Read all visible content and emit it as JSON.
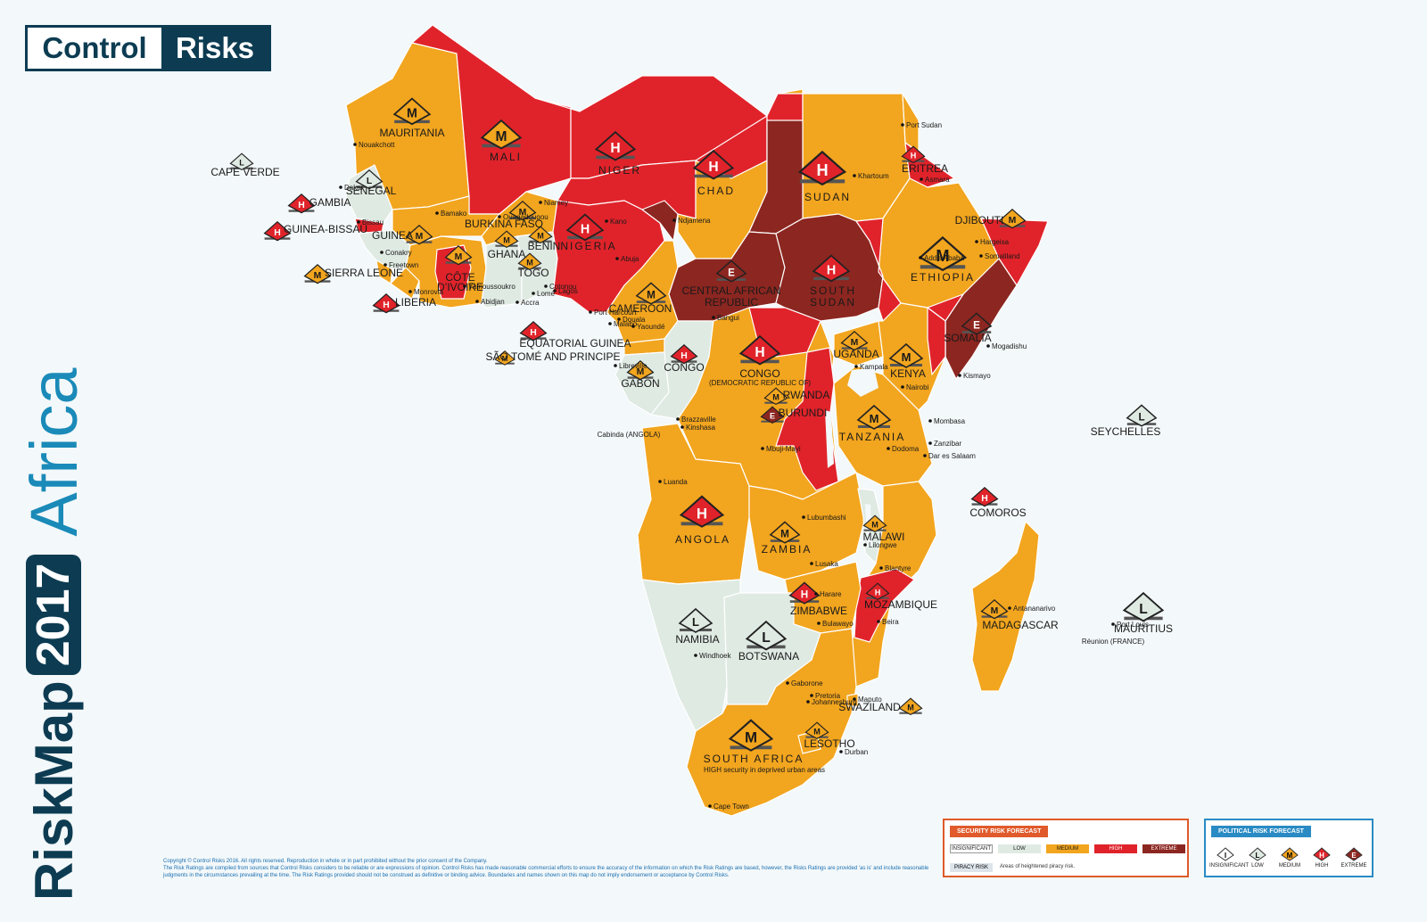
{
  "logo": {
    "word1": "Control",
    "word2": "Risks"
  },
  "title": {
    "brand": "RiskMap",
    "year": "2017",
    "region": "Africa"
  },
  "colors": {
    "insignificant": "#ffffff",
    "low": "#dfeae3",
    "medium": "#f2a51e",
    "high": "#e0232a",
    "extreme": "#8c2620",
    "ocean": "#f3f8fa",
    "accent": "#0d3c52"
  },
  "countries": [
    {
      "name": "MAURITANIA",
      "risk": "M"
    },
    {
      "name": "MALI",
      "risk": "M"
    },
    {
      "name": "NIGER",
      "risk": "H"
    },
    {
      "name": "CHAD",
      "risk": "H"
    },
    {
      "name": "SUDAN",
      "risk": "H"
    },
    {
      "name": "ERITREA",
      "risk": "H"
    },
    {
      "name": "DJIBOUTI",
      "risk": "M"
    },
    {
      "name": "ETHIOPIA",
      "risk": "M"
    },
    {
      "name": "SOMALIA",
      "risk": "E"
    },
    {
      "name": "SENEGAL",
      "risk": "L"
    },
    {
      "name": "GAMBIA",
      "risk": "H"
    },
    {
      "name": "GUINEA-BISSAU",
      "risk": "H"
    },
    {
      "name": "GUINEA",
      "risk": "M"
    },
    {
      "name": "SIERRA LEONE",
      "risk": "M"
    },
    {
      "name": "LIBERIA",
      "risk": "H"
    },
    {
      "name": "CÔTE D'IVOIRE",
      "risk": "M"
    },
    {
      "name": "BURKINA FASO",
      "risk": "M"
    },
    {
      "name": "GHANA",
      "risk": "M"
    },
    {
      "name": "TOGO",
      "risk": "M"
    },
    {
      "name": "BENIN",
      "risk": "M"
    },
    {
      "name": "NIGERIA",
      "risk": "H"
    },
    {
      "name": "CAMEROON",
      "risk": "M"
    },
    {
      "name": "CENTRAL AFRICAN REPUBLIC",
      "risk": "E"
    },
    {
      "name": "SOUTH SUDAN",
      "risk": "H"
    },
    {
      "name": "EQUATORIAL GUINEA",
      "risk": "H"
    },
    {
      "name": "SÃO TOMÉ AND PRINCIPE",
      "risk": "M"
    },
    {
      "name": "GABON",
      "risk": "M"
    },
    {
      "name": "CONGO",
      "risk": "H"
    },
    {
      "name": "CONGO (DEMOCRATIC REPUBLIC OF)",
      "risk": "H"
    },
    {
      "name": "UGANDA",
      "risk": "M"
    },
    {
      "name": "KENYA",
      "risk": "M"
    },
    {
      "name": "RWANDA",
      "risk": "M"
    },
    {
      "name": "BURUNDI",
      "risk": "E"
    },
    {
      "name": "TANZANIA",
      "risk": "M"
    },
    {
      "name": "SEYCHELLES",
      "risk": "L"
    },
    {
      "name": "COMOROS",
      "risk": "H"
    },
    {
      "name": "ANGOLA",
      "risk": "H"
    },
    {
      "name": "ZAMBIA",
      "risk": "M"
    },
    {
      "name": "MALAWI",
      "risk": "M"
    },
    {
      "name": "MOZAMBIQUE",
      "risk": "H"
    },
    {
      "name": "ZIMBABWE",
      "risk": "H"
    },
    {
      "name": "MADAGASCAR",
      "risk": "M"
    },
    {
      "name": "MAURITIUS",
      "risk": "L"
    },
    {
      "name": "NAMIBIA",
      "risk": "L"
    },
    {
      "name": "BOTSWANA",
      "risk": "L"
    },
    {
      "name": "SWAZILAND",
      "risk": "M"
    },
    {
      "name": "LESOTHO",
      "risk": "M"
    },
    {
      "name": "SOUTH AFRICA",
      "risk": "M"
    },
    {
      "name": "CAPE VERDE",
      "risk": "L"
    }
  ],
  "notes": {
    "south_africa": "HIGH security in deprived urban areas",
    "reunion": "Réunion (FRANCE)",
    "cabinda": "Cabinda (ANGOLA)"
  },
  "cities": [
    "Nouakchott",
    "Dakar",
    "Bissau",
    "Conakry",
    "Freetown",
    "Monrovia",
    "Bamako",
    "Ouagadougou",
    "Niamey",
    "Yamoussoukro",
    "Abidjan",
    "Accra",
    "Lomé",
    "Cotonou",
    "Lagos",
    "Kano",
    "Abuja",
    "Port Harcourt",
    "Malabo",
    "Douala",
    "Yaoundé",
    "Ndjamena",
    "Bangui",
    "Libreville",
    "Brazzaville",
    "Kinshasa",
    "Luanda",
    "Khartoum",
    "Port Sudan",
    "Asmara",
    "Hargeisa",
    "Somaliland",
    "Addis Ababa",
    "Mogadishu",
    "Kismayo",
    "Kampala",
    "Nairobi",
    "Mombasa",
    "Zanzibar",
    "Dar es Salaam",
    "Dodoma",
    "Mbuji-Mayi",
    "Lubumbashi",
    "Lusaka",
    "Lilongwe",
    "Blantyre",
    "Harare",
    "Bulawayo",
    "Beira",
    "Windhoek",
    "Gaborone",
    "Pretoria",
    "Johannesburg",
    "Maputo",
    "Durban",
    "Cape Town",
    "Antananarivo",
    "Port Louis"
  ],
  "legend": {
    "security_title": "SECURITY RISK FORECAST",
    "levels": [
      "INSIGNIFICANT",
      "LOW",
      "MEDIUM",
      "HIGH",
      "EXTREME"
    ],
    "piracy_label": "PIRACY RISK",
    "piracy_desc": "Areas of heightened piracy risk.",
    "political_title": "POLITICAL RISK FORECAST"
  },
  "copyright": {
    "line1": "Copyright © Control Risks 2016. All rights reserved. Reproduction in whole or in part prohibited without the prior consent of the Company.",
    "line2": "The Risk Ratings are compiled from sources that Control Risks considers to be reliable or are expressions of opinion. Control Risks has made reasonable commercial efforts to ensure the accuracy of the information on which the Risk Ratings are based, however, the Risks Ratings are provided 'as is' and include reasonable judgments in the circumstances prevailing at the time. The Risk Ratings provided should not be construed as definitive or binding advice. Boundaries and names shown on this map do not imply endorsement or acceptance by Control Risks."
  }
}
